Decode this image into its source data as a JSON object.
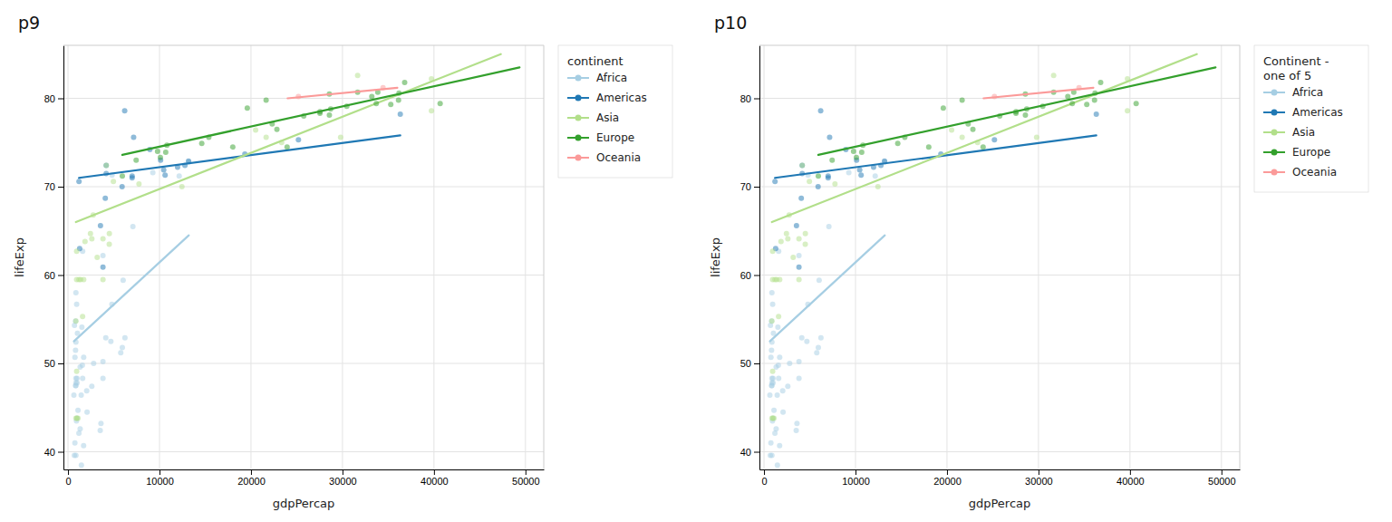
{
  "chart_data": [
    {
      "type": "scatter",
      "title": "p9",
      "x_label": "gdpPercap",
      "y_label": "lifeExp",
      "legend_title": "continent",
      "xlim": [
        -500,
        52000
      ],
      "ylim": [
        38,
        86
      ],
      "xticks": [
        0,
        10000,
        20000,
        30000,
        40000,
        50000
      ],
      "yticks": [
        40,
        50,
        60,
        70,
        80
      ],
      "grid": true,
      "legend": "right",
      "series": [
        {
          "name": "Africa",
          "color": "#A6CEE3",
          "x": [
            974,
            5937,
            6223,
            4797,
            1712,
            2042,
            706,
            1704,
            1327,
            924,
            759,
            12154,
            641,
            690,
            13206,
            752,
            1327,
            3820,
            823,
            944,
            1091,
            823,
            4811,
            1193,
            862,
            1569,
            5765,
            3602,
            862,
            1598,
            7092,
            986,
            1030,
            6025,
            2082,
            3820,
            2602,
            9270,
            863,
            1598,
            862,
            4684,
            986,
            1463,
            4129,
            2800,
            1516,
            862,
            862,
            1441,
            3820,
            823,
            3521
          ],
          "values": [
            43.8,
            51.8,
            52.9,
            56.7,
            50.7,
            46.9,
            54.3,
            40.7,
            42.6,
            43.5,
            50.7,
            71.2,
            46.4,
            39.6,
            72.8,
            41.0,
            49.6,
            62.2,
            51.5,
            56.7,
            44.7,
            47.5,
            71.3,
            42.1,
            58.0,
            49.8,
            51.2,
            43.2,
            47.8,
            48.3,
            65.5,
            47.8,
            53.4,
            59.4,
            44.5,
            50.2,
            47.4,
            71.6,
            48.3,
            62.7,
            39.6,
            52.5,
            48.3,
            38.5,
            52.9,
            50.0,
            54.1,
            47.5,
            52.4,
            46.4,
            48.3,
            54.8,
            42.4
          ],
          "trendline": {
            "x": [
              641,
              13206
            ],
            "values": [
              52.5,
              64.5
            ]
          }
        },
        {
          "name": "Americas",
          "color": "#1F78B4",
          "x": [
            5911,
            12779,
            36319,
            13171,
            7007,
            1201,
            6195,
            7170,
            3548,
            10612,
            4172,
            1271,
            7009,
            3820,
            11978,
            8948,
            4073,
            4172,
            25185,
            19329,
            10119,
            10461
          ],
          "values": [
            70.0,
            72.4,
            78.2,
            72.9,
            71.0,
            70.6,
            78.6,
            75.6,
            65.6,
            71.3,
            72.4,
            63.0,
            71.2,
            60.9,
            72.2,
            74.2,
            68.7,
            71.5,
            75.3,
            73.7,
            73.0,
            71.9
          ],
          "trendline": {
            "x": [
              1201,
              36319
            ],
            "values": [
              71.0,
              75.8
            ]
          }
        },
        {
          "name": "Asia",
          "color": "#B2DF8A",
          "x": [
            974,
            29796,
            2605,
            4959,
            1391,
            31656,
            39725,
            4519,
            1714,
            3190,
            7756,
            2452,
            2753,
            39724,
            20509,
            1593,
            3820,
            12451,
            944,
            944,
            1091,
            4184,
            1858,
            3820,
            862,
            862,
            1202,
            944,
            4508,
            21655,
            23348
          ],
          "values": [
            43.8,
            75.6,
            64.1,
            70.6,
            59.5,
            82.6,
            82.2,
            64.7,
            59.5,
            62.0,
            70.3,
            64.7,
            66.8,
            78.6,
            76.4,
            55.3,
            64.1,
            70.0,
            59.5,
            49.1,
            43.8,
            72.4,
            63.8,
            59.5,
            43.8,
            54.8,
            59.5,
            62.7,
            63.5,
            75.6,
            75.0
          ],
          "trendline": {
            "x": [
              862,
              47306
            ],
            "values": [
              66.0,
              85.0
            ]
          }
        },
        {
          "name": "Europe",
          "color": "#33A02C",
          "x": [
            5937,
            36126,
            33693,
            7447,
            10680,
            14619,
            22833,
            35278,
            30470,
            40676,
            31656,
            28570,
            27538,
            18008,
            10095,
            15389,
            33207,
            27538,
            23948,
            36180,
            10808,
            36797,
            19596,
            28569,
            22316,
            28718,
            9786,
            25768,
            33860,
            21654
          ],
          "values": [
            71.2,
            79.8,
            79.4,
            73.0,
            73.9,
            74.9,
            76.5,
            79.3,
            79.1,
            79.4,
            80.7,
            78.1,
            78.3,
            74.5,
            73.3,
            75.6,
            80.2,
            78.5,
            74.5,
            80.6,
            74.7,
            81.8,
            78.9,
            80.5,
            77.1,
            78.8,
            74.0,
            78.0,
            80.7,
            79.8
          ],
          "trendline": {
            "x": [
              5937,
              49357
            ],
            "values": [
              73.6,
              83.5
            ]
          }
        },
        {
          "name": "Oceania",
          "color": "#FB9A99",
          "x": [
            34435,
            25185
          ],
          "values": [
            81.2,
            80.2
          ],
          "trendline": {
            "x": [
              24000,
              36000
            ],
            "values": [
              80.0,
              81.2
            ]
          }
        }
      ]
    },
    {
      "type": "scatter",
      "title": "p10",
      "x_label": "gdpPercap",
      "y_label": "lifeExp",
      "legend_title": "Continent -\none of 5",
      "xlim": [
        -500,
        52000
      ],
      "ylim": [
        38,
        86
      ],
      "xticks": [
        0,
        10000,
        20000,
        30000,
        40000,
        50000
      ],
      "yticks": [
        40,
        50,
        60,
        70,
        80
      ],
      "grid": true,
      "legend": "right",
      "series": [
        {
          "name": "Africa",
          "color": "#A6CEE3",
          "x": [
            974,
            5937,
            6223,
            4797,
            1712,
            2042,
            706,
            1704,
            1327,
            924,
            759,
            12154,
            641,
            690,
            13206,
            752,
            1327,
            3820,
            823,
            944,
            1091,
            823,
            4811,
            1193,
            862,
            1569,
            5765,
            3602,
            862,
            1598,
            7092,
            986,
            1030,
            6025,
            2082,
            3820,
            2602,
            9270,
            863,
            1598,
            862,
            4684,
            986,
            1463,
            4129,
            2800,
            1516,
            862,
            862,
            1441,
            3820,
            823,
            3521
          ],
          "values": [
            43.8,
            51.8,
            52.9,
            56.7,
            50.7,
            46.9,
            54.3,
            40.7,
            42.6,
            43.5,
            50.7,
            71.2,
            46.4,
            39.6,
            72.8,
            41.0,
            49.6,
            62.2,
            51.5,
            56.7,
            44.7,
            47.5,
            71.3,
            42.1,
            58.0,
            49.8,
            51.2,
            43.2,
            47.8,
            48.3,
            65.5,
            47.8,
            53.4,
            59.4,
            44.5,
            50.2,
            47.4,
            71.6,
            48.3,
            62.7,
            39.6,
            52.5,
            48.3,
            38.5,
            52.9,
            50.0,
            54.1,
            47.5,
            52.4,
            46.4,
            48.3,
            54.8,
            42.4
          ],
          "trendline": {
            "x": [
              641,
              13206
            ],
            "values": [
              52.5,
              64.5
            ]
          }
        },
        {
          "name": "Americas",
          "color": "#1F78B4",
          "x": [
            5911,
            12779,
            36319,
            13171,
            7007,
            1201,
            6195,
            7170,
            3548,
            10612,
            4172,
            1271,
            7009,
            3820,
            11978,
            8948,
            4073,
            4172,
            25185,
            19329,
            10119,
            10461
          ],
          "values": [
            70.0,
            72.4,
            78.2,
            72.9,
            71.0,
            70.6,
            78.6,
            75.6,
            65.6,
            71.3,
            72.4,
            63.0,
            71.2,
            60.9,
            72.2,
            74.2,
            68.7,
            71.5,
            75.3,
            73.7,
            73.0,
            71.9
          ],
          "trendline": {
            "x": [
              1201,
              36319
            ],
            "values": [
              71.0,
              75.8
            ]
          }
        },
        {
          "name": "Asia",
          "color": "#B2DF8A",
          "x": [
            974,
            29796,
            2605,
            4959,
            1391,
            31656,
            39725,
            4519,
            1714,
            3190,
            7756,
            2452,
            2753,
            39724,
            20509,
            1593,
            3820,
            12451,
            944,
            944,
            1091,
            4184,
            1858,
            3820,
            862,
            862,
            1202,
            944,
            4508,
            21655,
            23348
          ],
          "values": [
            43.8,
            75.6,
            64.1,
            70.6,
            59.5,
            82.6,
            82.2,
            64.7,
            59.5,
            62.0,
            70.3,
            64.7,
            66.8,
            78.6,
            76.4,
            55.3,
            64.1,
            70.0,
            59.5,
            49.1,
            43.8,
            72.4,
            63.8,
            59.5,
            43.8,
            54.8,
            59.5,
            62.7,
            63.5,
            75.6,
            75.0
          ],
          "trendline": {
            "x": [
              862,
              47306
            ],
            "values": [
              66.0,
              85.0
            ]
          }
        },
        {
          "name": "Europe",
          "color": "#33A02C",
          "x": [
            5937,
            36126,
            33693,
            7447,
            10680,
            14619,
            22833,
            35278,
            30470,
            40676,
            31656,
            28570,
            27538,
            18008,
            10095,
            15389,
            33207,
            27538,
            23948,
            36180,
            10808,
            36797,
            19596,
            28569,
            22316,
            28718,
            9786,
            25768,
            33860,
            21654
          ],
          "values": [
            71.2,
            79.8,
            79.4,
            73.0,
            73.9,
            74.9,
            76.5,
            79.3,
            79.1,
            79.4,
            80.7,
            78.1,
            78.3,
            74.5,
            73.3,
            75.6,
            80.2,
            78.5,
            74.5,
            80.6,
            74.7,
            81.8,
            78.9,
            80.5,
            77.1,
            78.8,
            74.0,
            78.0,
            80.7,
            79.8
          ],
          "trendline": {
            "x": [
              5937,
              49357
            ],
            "values": [
              73.6,
              83.5
            ]
          }
        },
        {
          "name": "Oceania",
          "color": "#FB9A99",
          "x": [
            34435,
            25185
          ],
          "values": [
            81.2,
            80.2
          ],
          "trendline": {
            "x": [
              24000,
              36000
            ],
            "values": [
              80.0,
              81.2
            ]
          }
        }
      ]
    }
  ]
}
